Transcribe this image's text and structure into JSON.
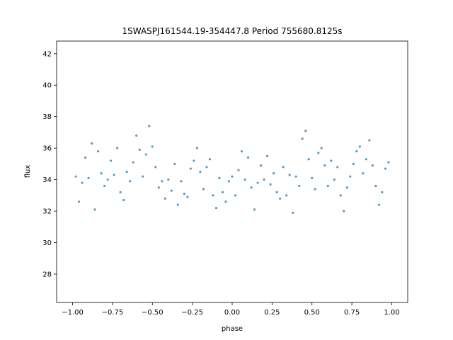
{
  "chart_data": {
    "type": "scatter",
    "title": "1SWASPJ161544.19-354447.8 Period 755680.8125s",
    "xlabel": "phase",
    "ylabel": "flux",
    "xlim": [
      -1.1,
      1.1
    ],
    "ylim": [
      26.2,
      42.8
    ],
    "xticks": [
      -1.0,
      -0.75,
      -0.5,
      -0.25,
      0.0,
      0.25,
      0.5,
      0.75,
      1.0
    ],
    "xtick_labels": [
      "−1.00",
      "−0.75",
      "−0.50",
      "−0.25",
      "0.00",
      "0.25",
      "0.50",
      "0.75",
      "1.00"
    ],
    "yticks": [
      28,
      30,
      32,
      34,
      36,
      38,
      40,
      42
    ],
    "ytick_labels": [
      "28",
      "30",
      "32",
      "34",
      "36",
      "38",
      "40",
      "42"
    ],
    "grid": false,
    "legend": "none",
    "marker_color": "#1f77b4",
    "series": [
      {
        "x": [
          -0.98,
          -0.96,
          -0.94,
          -0.92,
          -0.9,
          -0.88,
          -0.86,
          -0.84,
          -0.82,
          -0.8,
          -0.78,
          -0.76,
          -0.74,
          -0.72,
          -0.7,
          -0.68,
          -0.66,
          -0.64,
          -0.62,
          -0.6,
          -0.58,
          -0.56,
          -0.54,
          -0.52,
          -0.5,
          -0.48,
          -0.46,
          -0.44,
          -0.42,
          -0.4,
          -0.38,
          -0.36,
          -0.34,
          -0.32,
          -0.3,
          -0.28,
          -0.26,
          -0.24,
          -0.22,
          -0.2,
          -0.18,
          -0.16,
          -0.14,
          -0.12,
          -0.1,
          -0.08,
          -0.06,
          -0.04,
          -0.02,
          0.0,
          0.02,
          0.04,
          0.06,
          0.08,
          0.1,
          0.12,
          0.14,
          0.16,
          0.18,
          0.2,
          0.22,
          0.24,
          0.26,
          0.28,
          0.3,
          0.32,
          0.34,
          0.36,
          0.38,
          0.4,
          0.42,
          0.44,
          0.46,
          0.48,
          0.5,
          0.52,
          0.54,
          0.56,
          0.58,
          0.6,
          0.62,
          0.64,
          0.66,
          0.68,
          0.7,
          0.72,
          0.74,
          0.76,
          0.78,
          0.8,
          0.82,
          0.84,
          0.86,
          0.88,
          0.9,
          0.92,
          0.94,
          0.96,
          0.98
        ],
        "y": [
          34.2,
          32.6,
          33.8,
          35.4,
          34.1,
          36.3,
          32.1,
          35.8,
          34.4,
          33.6,
          34.0,
          35.2,
          34.3,
          36.0,
          33.2,
          32.7,
          34.5,
          33.9,
          35.1,
          36.8,
          35.9,
          34.2,
          35.6,
          37.4,
          36.1,
          34.8,
          33.5,
          33.9,
          32.8,
          34.0,
          33.3,
          35.0,
          32.4,
          33.9,
          33.1,
          32.9,
          34.7,
          35.2,
          36.0,
          34.5,
          33.4,
          34.8,
          35.3,
          33.0,
          32.2,
          34.1,
          33.2,
          32.6,
          33.9,
          34.2,
          33.0,
          34.6,
          35.8,
          34.0,
          35.4,
          33.5,
          32.1,
          33.8,
          34.9,
          34.0,
          35.5,
          33.7,
          34.4,
          33.2,
          32.8,
          34.8,
          33.0,
          34.3,
          31.9,
          34.2,
          33.6,
          36.6,
          37.1,
          35.3,
          34.1,
          33.4,
          35.7,
          36.0,
          34.9,
          33.6,
          35.2,
          34.0,
          34.8,
          33.0,
          32.0,
          33.5,
          34.2,
          35.0,
          35.8,
          36.1,
          34.4,
          35.3,
          36.5,
          34.9,
          33.6,
          32.4,
          33.2,
          34.7,
          35.1
        ]
      }
    ]
  }
}
